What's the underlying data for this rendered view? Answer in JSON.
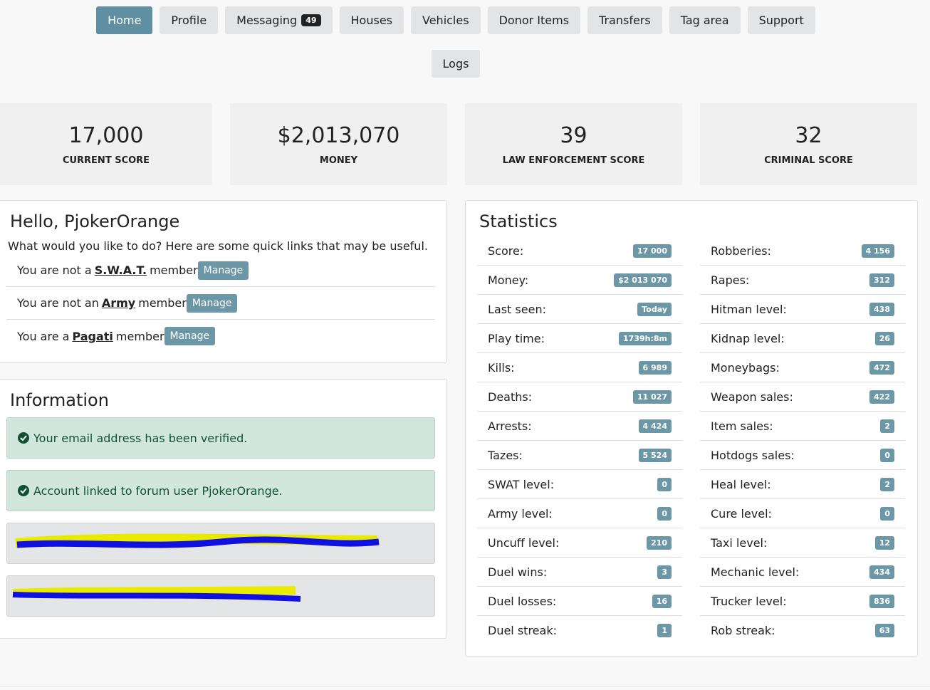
{
  "nav": [
    "Home",
    "Profile",
    "Messaging",
    "Houses",
    "Vehicles",
    "Donor Items",
    "Transfers",
    "Tag area",
    "Support",
    "Logs"
  ],
  "nav_badge": "49",
  "cards": [
    {
      "value": "17,000",
      "label": "CURRENT SCORE"
    },
    {
      "value": "$2,013,070",
      "label": "MONEY"
    },
    {
      "value": "39",
      "label": "LAW ENFORCEMENT SCORE"
    },
    {
      "value": "32",
      "label": "CRIMINAL SCORE"
    }
  ],
  "hello": {
    "title": "Hello, PjokerOrange",
    "intro": "What would you like to do? Here are some quick links that may be useful.",
    "memberships": [
      {
        "pre": "You are not a",
        "org": "S.W.A.T.",
        "post": "member",
        "button": "Manage"
      },
      {
        "pre": "You are not an",
        "org": "Army",
        "post": "member",
        "button": "Manage"
      },
      {
        "pre": "You are a",
        "org": "Pagati",
        "post": "member",
        "button": "Manage"
      }
    ]
  },
  "information": {
    "title": "Information",
    "alerts": [
      "Your email address has been verified.",
      "Account linked to forum user PjokerOrange."
    ]
  },
  "statistics": {
    "title": "Statistics",
    "left": [
      {
        "label": "Score:",
        "value": "17 000"
      },
      {
        "label": "Money:",
        "value": "$2 013 070"
      },
      {
        "label": "Last seen:",
        "value": "Today"
      },
      {
        "label": "Play time:",
        "value": "1739h:8m"
      },
      {
        "label": "Kills:",
        "value": "6 989"
      },
      {
        "label": "Deaths:",
        "value": "11 027"
      },
      {
        "label": "Arrests:",
        "value": "4 424"
      },
      {
        "label": "Tazes:",
        "value": "5 524"
      },
      {
        "label": "SWAT level:",
        "value": "0"
      },
      {
        "label": "Army level:",
        "value": "0"
      },
      {
        "label": "Uncuff level:",
        "value": "210"
      },
      {
        "label": "Duel wins:",
        "value": "3"
      },
      {
        "label": "Duel losses:",
        "value": "16"
      },
      {
        "label": "Duel streak:",
        "value": "1"
      }
    ],
    "right": [
      {
        "label": "Robberies:",
        "value": "4 156"
      },
      {
        "label": "Rapes:",
        "value": "312"
      },
      {
        "label": "Hitman level:",
        "value": "438"
      },
      {
        "label": "Kidnap level:",
        "value": "26"
      },
      {
        "label": "Moneybags:",
        "value": "472"
      },
      {
        "label": "Weapon sales:",
        "value": "422"
      },
      {
        "label": "Item sales:",
        "value": "2"
      },
      {
        "label": "Hotdogs sales:",
        "value": "0"
      },
      {
        "label": "Heal level:",
        "value": "2"
      },
      {
        "label": "Cure level:",
        "value": "0"
      },
      {
        "label": "Taxi level:",
        "value": "12"
      },
      {
        "label": "Mechanic level:",
        "value": "434"
      },
      {
        "label": "Trucker level:",
        "value": "836"
      },
      {
        "label": "Rob streak:",
        "value": "63"
      }
    ]
  }
}
